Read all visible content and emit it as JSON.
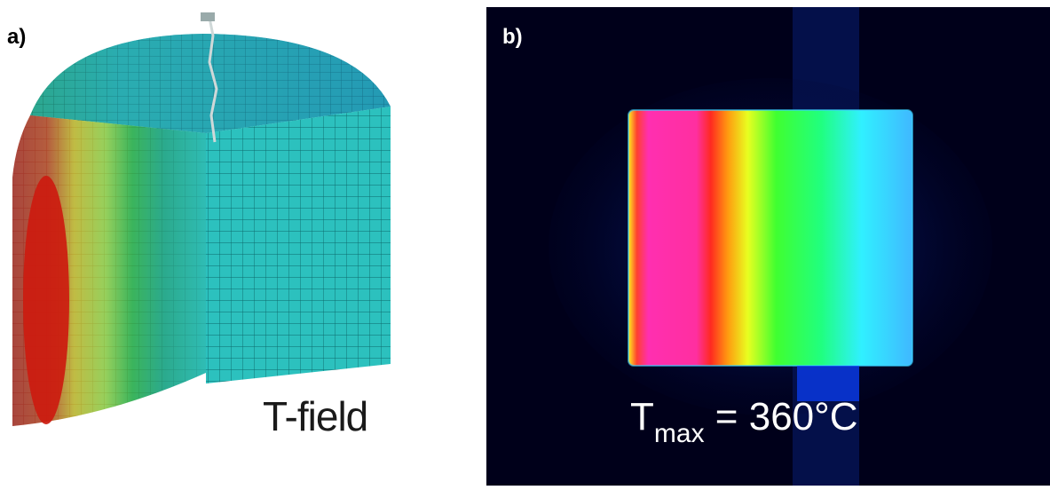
{
  "panels": {
    "a": {
      "label": "a)",
      "caption": "T-field"
    },
    "b": {
      "label": "b)",
      "caption_main": "T",
      "caption_sub": "max",
      "caption_rest": " = 360°C"
    }
  },
  "colors": {
    "mesh_cold": "#2fc6c2",
    "mesh_line": "#0b5f62",
    "hot_red": "#d11a10",
    "thermal_magenta": "#ff2fb0",
    "thermal_background": "#00001a"
  }
}
